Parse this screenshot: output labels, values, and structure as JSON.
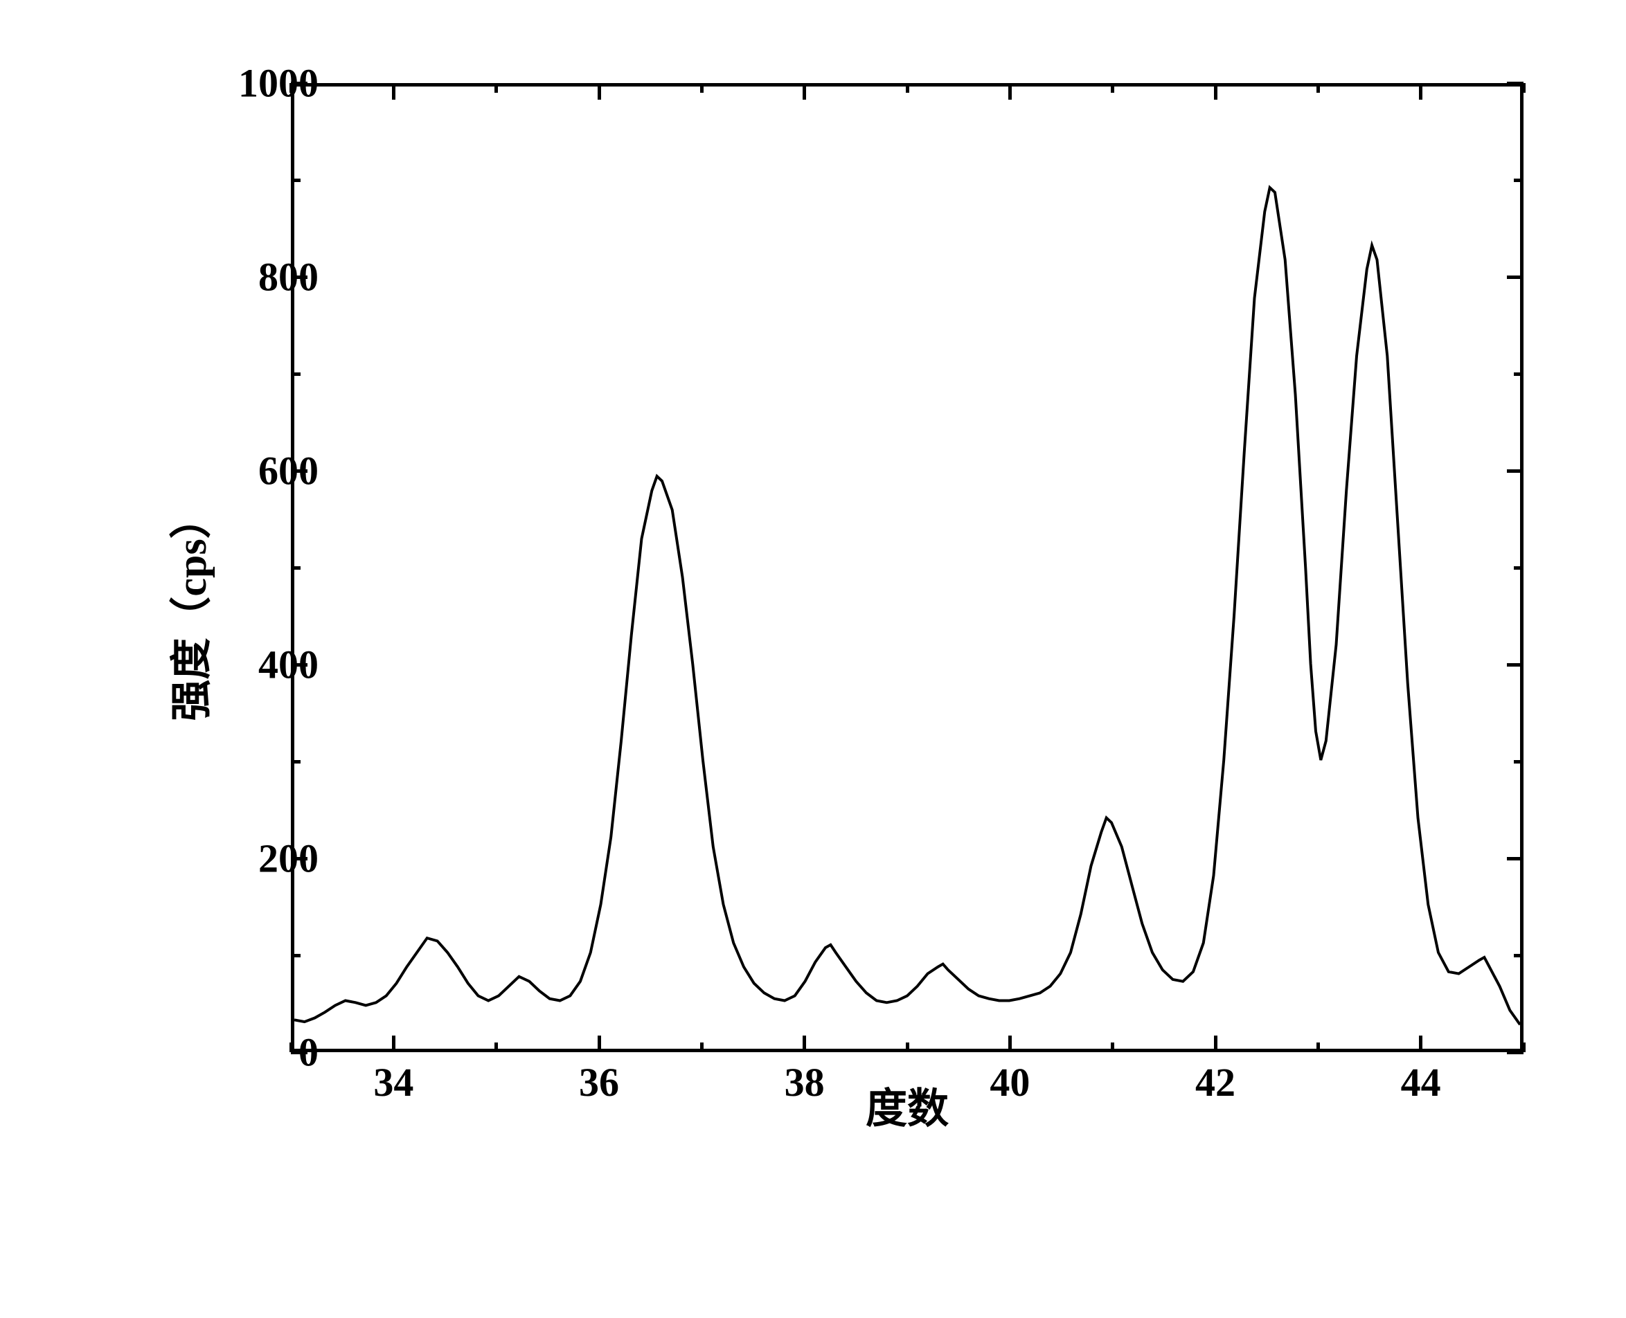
{
  "chart": {
    "type": "line",
    "xlabel": "度数",
    "ylabel": "强度（cps）",
    "xlim": [
      33,
      45
    ],
    "ylim": [
      0,
      1000
    ],
    "x_major_ticks": [
      34,
      36,
      38,
      40,
      42,
      44
    ],
    "x_minor_ticks": [
      33,
      35,
      37,
      39,
      41,
      43,
      45
    ],
    "y_major_ticks": [
      0,
      200,
      400,
      600,
      800,
      1000
    ],
    "y_minor_ticks": [
      100,
      300,
      500,
      700,
      900
    ],
    "line_color": "#000000",
    "line_width": 4,
    "border_color": "#000000",
    "border_width": 5,
    "background_color": "#ffffff",
    "label_fontsize": 60,
    "tick_fontsize": 58,
    "data": [
      [
        33.0,
        30
      ],
      [
        33.1,
        28
      ],
      [
        33.2,
        32
      ],
      [
        33.3,
        38
      ],
      [
        33.4,
        45
      ],
      [
        33.5,
        50
      ],
      [
        33.6,
        48
      ],
      [
        33.7,
        45
      ],
      [
        33.8,
        48
      ],
      [
        33.9,
        55
      ],
      [
        34.0,
        68
      ],
      [
        34.1,
        85
      ],
      [
        34.2,
        100
      ],
      [
        34.3,
        115
      ],
      [
        34.4,
        112
      ],
      [
        34.5,
        100
      ],
      [
        34.6,
        85
      ],
      [
        34.7,
        68
      ],
      [
        34.8,
        55
      ],
      [
        34.9,
        50
      ],
      [
        35.0,
        55
      ],
      [
        35.1,
        65
      ],
      [
        35.2,
        75
      ],
      [
        35.3,
        70
      ],
      [
        35.4,
        60
      ],
      [
        35.5,
        52
      ],
      [
        35.6,
        50
      ],
      [
        35.7,
        55
      ],
      [
        35.8,
        70
      ],
      [
        35.9,
        100
      ],
      [
        36.0,
        150
      ],
      [
        36.1,
        220
      ],
      [
        36.2,
        320
      ],
      [
        36.3,
        430
      ],
      [
        36.4,
        530
      ],
      [
        36.5,
        580
      ],
      [
        36.55,
        595
      ],
      [
        36.6,
        590
      ],
      [
        36.7,
        560
      ],
      [
        36.8,
        490
      ],
      [
        36.9,
        400
      ],
      [
        37.0,
        300
      ],
      [
        37.1,
        210
      ],
      [
        37.2,
        150
      ],
      [
        37.3,
        110
      ],
      [
        37.4,
        85
      ],
      [
        37.5,
        68
      ],
      [
        37.6,
        58
      ],
      [
        37.7,
        52
      ],
      [
        37.8,
        50
      ],
      [
        37.9,
        55
      ],
      [
        38.0,
        70
      ],
      [
        38.1,
        90
      ],
      [
        38.2,
        105
      ],
      [
        38.25,
        108
      ],
      [
        38.3,
        100
      ],
      [
        38.4,
        85
      ],
      [
        38.5,
        70
      ],
      [
        38.6,
        58
      ],
      [
        38.7,
        50
      ],
      [
        38.8,
        48
      ],
      [
        38.9,
        50
      ],
      [
        39.0,
        55
      ],
      [
        39.1,
        65
      ],
      [
        39.2,
        78
      ],
      [
        39.3,
        85
      ],
      [
        39.35,
        88
      ],
      [
        39.4,
        82
      ],
      [
        39.5,
        72
      ],
      [
        39.6,
        62
      ],
      [
        39.7,
        55
      ],
      [
        39.8,
        52
      ],
      [
        39.9,
        50
      ],
      [
        40.0,
        50
      ],
      [
        40.1,
        52
      ],
      [
        40.2,
        55
      ],
      [
        40.3,
        58
      ],
      [
        40.4,
        65
      ],
      [
        40.5,
        78
      ],
      [
        40.6,
        100
      ],
      [
        40.7,
        140
      ],
      [
        40.8,
        190
      ],
      [
        40.9,
        225
      ],
      [
        40.95,
        240
      ],
      [
        41.0,
        235
      ],
      [
        41.1,
        210
      ],
      [
        41.2,
        170
      ],
      [
        41.3,
        130
      ],
      [
        41.4,
        100
      ],
      [
        41.5,
        82
      ],
      [
        41.6,
        72
      ],
      [
        41.7,
        70
      ],
      [
        41.8,
        80
      ],
      [
        41.9,
        110
      ],
      [
        42.0,
        180
      ],
      [
        42.1,
        300
      ],
      [
        42.2,
        450
      ],
      [
        42.3,
        620
      ],
      [
        42.4,
        780
      ],
      [
        42.5,
        870
      ],
      [
        42.55,
        895
      ],
      [
        42.6,
        890
      ],
      [
        42.7,
        820
      ],
      [
        42.8,
        680
      ],
      [
        42.9,
        500
      ],
      [
        42.95,
        400
      ],
      [
        43.0,
        330
      ],
      [
        43.05,
        300
      ],
      [
        43.1,
        320
      ],
      [
        43.2,
        420
      ],
      [
        43.3,
        580
      ],
      [
        43.4,
        720
      ],
      [
        43.5,
        810
      ],
      [
        43.55,
        835
      ],
      [
        43.6,
        820
      ],
      [
        43.7,
        720
      ],
      [
        43.8,
        550
      ],
      [
        43.9,
        380
      ],
      [
        44.0,
        240
      ],
      [
        44.1,
        150
      ],
      [
        44.2,
        100
      ],
      [
        44.3,
        80
      ],
      [
        44.4,
        78
      ],
      [
        44.5,
        85
      ],
      [
        44.6,
        92
      ],
      [
        44.65,
        95
      ],
      [
        44.7,
        85
      ],
      [
        44.8,
        65
      ],
      [
        44.9,
        40
      ],
      [
        45.0,
        25
      ]
    ]
  }
}
